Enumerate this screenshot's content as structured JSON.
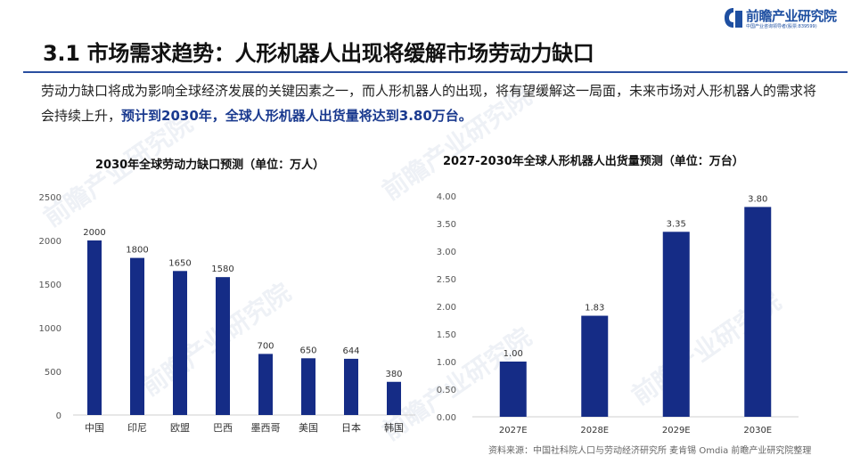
{
  "logo": {
    "name": "前瞻产业研究院",
    "tagline": "中国产业咨询领导者(股票:839599)"
  },
  "title": "3.1 市场需求趋势：人形机器人出现将缓解市场劳动力缺口",
  "intro": {
    "text": "劳动力缺口将成为影响全球经济发展的关键因素之一，而人形机器人的出现，将有望缓解这一局面，未来市场对人形机器人的需求将会持续上升，",
    "highlight": "预计到2030年，全球人形机器人出货量将达到3.80万台。"
  },
  "watermark": "前瞻产业研究院",
  "source": "资料来源：中国社科院人口与劳动经济研究所 麦肯锡 Omdia 前瞻产业研究院整理",
  "colors": {
    "bar": "#152c86",
    "accent": "#1e4fa1"
  },
  "chart_data": [
    {
      "type": "bar",
      "title": "2030年全球劳动力缺口预测（单位：万人）",
      "categories": [
        "中国",
        "印尼",
        "欧盟",
        "巴西",
        "墨西哥",
        "美国",
        "日本",
        "韩国"
      ],
      "values": [
        2000,
        1800,
        1650,
        1580,
        700,
        650,
        644,
        380
      ],
      "data_labels": [
        "2000",
        "1800",
        "1650",
        "1580",
        "700",
        "650",
        "644",
        "380"
      ],
      "ylim": [
        0,
        2500
      ],
      "yticks": [
        0,
        500,
        1000,
        1500,
        2000,
        2500
      ],
      "ytick_labels": [
        "0",
        "500",
        "1000",
        "1500",
        "2000",
        "2500"
      ],
      "grid": false
    },
    {
      "type": "bar",
      "title": "2027-2030年全球人形机器人出货量预测（单位：万台）",
      "categories": [
        "2027E",
        "2028E",
        "2029E",
        "2030E"
      ],
      "values": [
        1.0,
        1.83,
        3.35,
        3.8
      ],
      "data_labels": [
        "1.00",
        "1.83",
        "3.35",
        "3.80"
      ],
      "ylim": [
        0,
        4
      ],
      "yticks": [
        0,
        0.5,
        1,
        1.5,
        2,
        2.5,
        3,
        3.5,
        4
      ],
      "ytick_labels": [
        "0.00",
        "0.50",
        "1.00",
        "1.50",
        "2.00",
        "2.50",
        "3.00",
        "3.50",
        "4.00"
      ],
      "grid": false
    }
  ]
}
